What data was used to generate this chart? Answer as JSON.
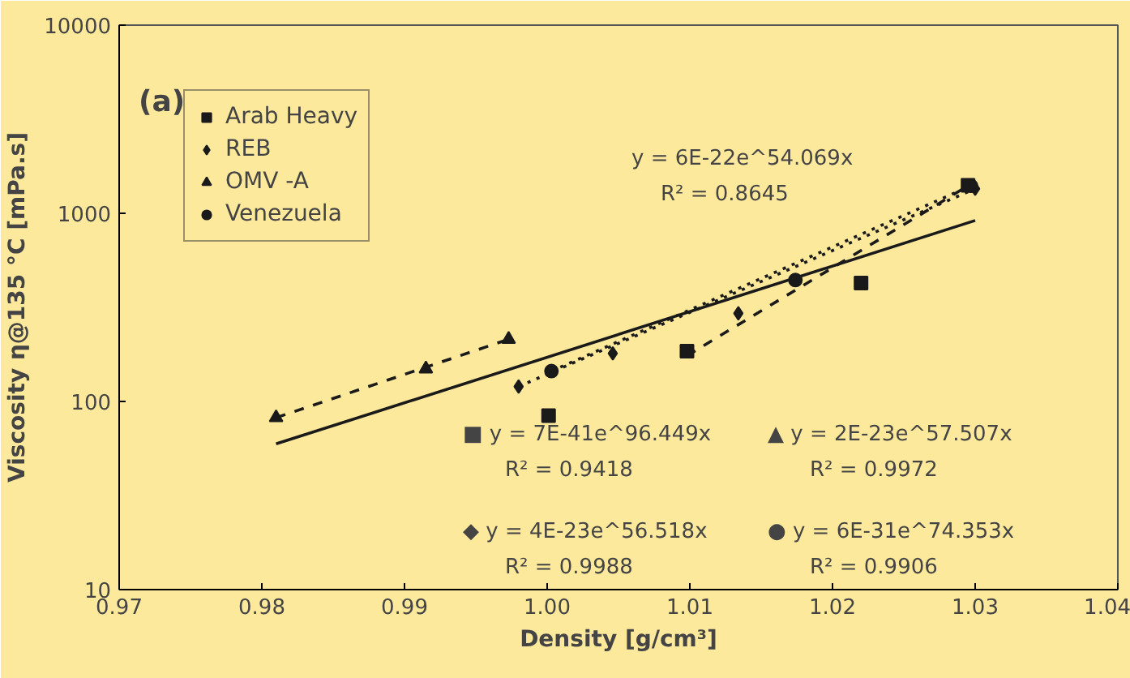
{
  "chart_data": {
    "type": "scatter",
    "title": "(a)",
    "xlabel": "Density [g/cm³]",
    "ylabel": "Viscosity η@135 °C [mPa.s]",
    "log": "y",
    "xlim": [
      0.97,
      1.04
    ],
    "xticks": [
      {
        "value": 0.97,
        "label": "0.97"
      },
      {
        "value": 0.98,
        "label": "0.98"
      },
      {
        "value": 0.99,
        "label": "0.99"
      },
      {
        "value": 1.0,
        "label": "1.00"
      },
      {
        "value": 1.01,
        "label": "1.01"
      },
      {
        "value": 1.02,
        "label": "1.02"
      },
      {
        "value": 1.03,
        "label": "1.03"
      },
      {
        "value": 1.04,
        "label": "1.04"
      }
    ],
    "ylim": [
      10,
      10000
    ],
    "yticks": [
      10,
      100,
      1000,
      10000
    ],
    "grid": false,
    "legend": "top left",
    "series": [
      {
        "name": "Arab Heavy",
        "color": "#1a1a1a",
        "marker": "square",
        "x": [
          1.0001,
          1.0098,
          1.022,
          1.0295
        ],
        "values": [
          84,
          185,
          426,
          1410
        ]
      },
      {
        "name": "REB",
        "color": "#1a1a1a",
        "marker": "diamond",
        "x": [
          0.998,
          1.0046,
          1.0134,
          1.03
        ],
        "values": [
          120,
          180,
          294,
          1350
        ]
      },
      {
        "name": "OMV -A",
        "color": "#1a1a1a",
        "marker": "triangle",
        "x": [
          0.981,
          0.9915,
          0.9973
        ],
        "values": [
          82,
          149,
          214
        ]
      },
      {
        "name": "Venezuela",
        "color": "#1a1a1a",
        "marker": "circle",
        "x": [
          1.0003,
          1.0174,
          1.0297
        ],
        "values": [
          145,
          442,
          1400
        ]
      },
      {
        "type": "line",
        "color": "#1a1a1a",
        "line_style": "solid",
        "x": [
          0.981,
          1.03
        ],
        "values": [
          59.5,
          916
        ]
      },
      {
        "type": "line",
        "color": "#1a1a1a",
        "line_style": "dashed",
        "x": [
          1.0098,
          1.0295
        ],
        "values": [
          175,
          1400
        ]
      },
      {
        "type": "line",
        "color": "#1a1a1a",
        "line_style": "dotted",
        "x": [
          0.998,
          1.03
        ],
        "values": [
          120,
          1350
        ]
      },
      {
        "type": "line",
        "color": "#1a1a1a",
        "line_style": "dashed",
        "x": [
          0.981,
          0.9973
        ],
        "values": [
          82,
          214
        ]
      },
      {
        "type": "line",
        "color": "#1a1a1a",
        "line_style": "dotted",
        "x": [
          1.0003,
          1.0297
        ],
        "values": [
          145,
          1400
        ]
      }
    ],
    "annotations": [
      "y = 6E-22e^54.069x",
      "R² = 0.8645",
      "■ y = 7E-41e^96.449x",
      "R² = 0.9418",
      "▲ y = 2E-23e^57.507x",
      "R² = 0.9972",
      "◆ y = 4E-23e^56.518x",
      "R² = 0.9988",
      "● y = 6E-31e^74.353x",
      "R² = 0.9906"
    ]
  }
}
